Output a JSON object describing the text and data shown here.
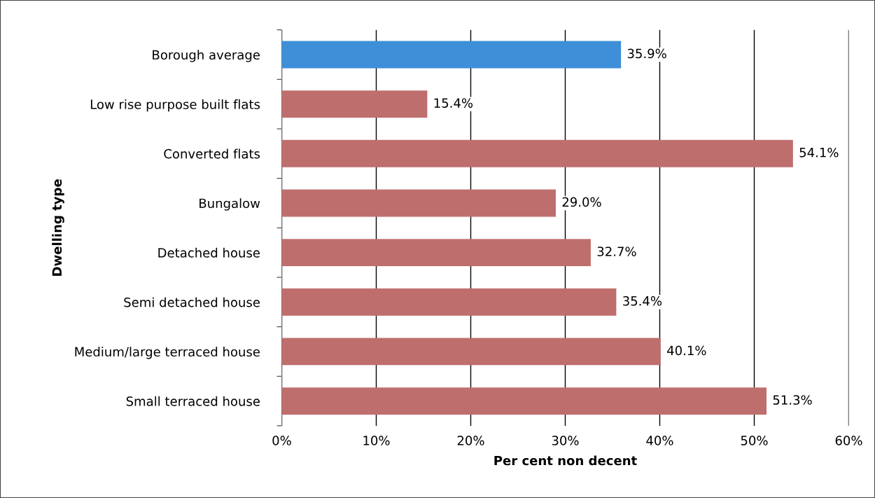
{
  "chart_data": {
    "type": "bar",
    "orientation": "horizontal",
    "xlabel": "Per cent non decent",
    "ylabel": "Dwelling type",
    "categories": [
      "Borough average",
      "Low rise purpose built flats",
      "Converted flats",
      "Bungalow",
      "Detached house",
      "Semi detached house",
      "Medium/large terraced house",
      "Small terraced house"
    ],
    "values": [
      35.9,
      15.4,
      54.1,
      29.0,
      32.7,
      35.4,
      40.1,
      51.3
    ],
    "colors": [
      "#3f8fd8",
      "#bf6e6e",
      "#bf6e6e",
      "#bf6e6e",
      "#bf6e6e",
      "#bf6e6e",
      "#bf6e6e",
      "#bf6e6e"
    ],
    "value_labels": [
      "35.9%",
      "15.4%",
      "54.1%",
      "29.0%",
      "32.7%",
      "35.4%",
      "40.1%",
      "51.3%"
    ],
    "xlim": [
      0,
      60
    ],
    "xticks": [
      {
        "value": 0,
        "label": "0%"
      },
      {
        "value": 10,
        "label": "10%"
      },
      {
        "value": 20,
        "label": "20%"
      },
      {
        "value": 30,
        "label": "30%"
      },
      {
        "value": 40,
        "label": "40%"
      },
      {
        "value": 50,
        "label": "50%"
      },
      {
        "value": 60,
        "label": "60%"
      }
    ],
    "grid": "x"
  }
}
